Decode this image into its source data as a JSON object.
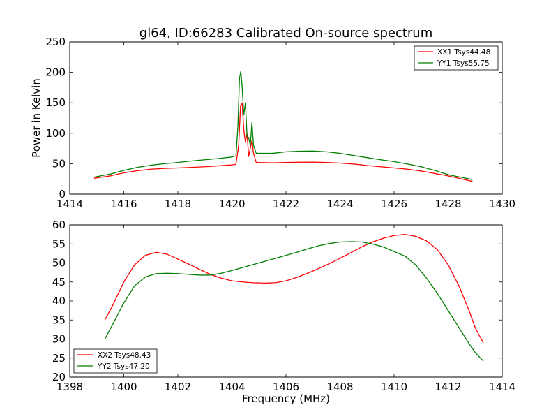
{
  "chart_data": [
    {
      "type": "line",
      "title": "gl64, ID:66283 Calibrated On-source spectrum",
      "xlabel": "",
      "ylabel": "Power in Kelvin",
      "xlim": [
        1414,
        1430
      ],
      "ylim": [
        0,
        250
      ],
      "xticks": [
        "1414",
        "1416",
        "1418",
        "1420",
        "1422",
        "1424",
        "1426",
        "1428",
        "1430"
      ],
      "yticks": [
        "0",
        "50",
        "100",
        "150",
        "200",
        "250"
      ],
      "grid": false,
      "legend_position": "top-right",
      "series": [
        {
          "name": "XX1 Tsys44.48",
          "color": "#ff0000",
          "points": [
            [
              1414.9,
              26
            ],
            [
              1415.5,
              30
            ],
            [
              1416,
              35
            ],
            [
              1416.5,
              38.5
            ],
            [
              1417,
              41
            ],
            [
              1417.5,
              42.3
            ],
            [
              1418,
              43
            ],
            [
              1418.5,
              44
            ],
            [
              1419,
              45
            ],
            [
              1419.5,
              46.5
            ],
            [
              1420.0,
              48
            ],
            [
              1420.15,
              49
            ],
            [
              1420.25,
              80
            ],
            [
              1420.32,
              145
            ],
            [
              1420.38,
              149
            ],
            [
              1420.44,
              105
            ],
            [
              1420.5,
              85
            ],
            [
              1420.56,
              100
            ],
            [
              1420.62,
              62
            ],
            [
              1420.68,
              75
            ],
            [
              1420.74,
              88
            ],
            [
              1420.8,
              67
            ],
            [
              1420.9,
              52
            ],
            [
              1421.5,
              51.5
            ],
            [
              1422,
              52
            ],
            [
              1422.5,
              52.5
            ],
            [
              1423,
              52.6
            ],
            [
              1423.5,
              52
            ],
            [
              1424,
              51
            ],
            [
              1424.5,
              49.5
            ],
            [
              1425,
              47
            ],
            [
              1425.5,
              45
            ],
            [
              1426,
              43
            ],
            [
              1426.5,
              41
            ],
            [
              1427,
              38
            ],
            [
              1427.5,
              34
            ],
            [
              1428,
              30
            ],
            [
              1428.5,
              25
            ],
            [
              1428.9,
              21
            ]
          ]
        },
        {
          "name": "YY1 Tsys55.75",
          "color": "#007f00",
          "points": [
            [
              1414.9,
              28
            ],
            [
              1415.5,
              33
            ],
            [
              1416,
              39
            ],
            [
              1416.5,
              44
            ],
            [
              1417,
              47.5
            ],
            [
              1417.5,
              50
            ],
            [
              1418,
              52
            ],
            [
              1418.5,
              54.5
            ],
            [
              1419,
              56.5
            ],
            [
              1419.5,
              58.5
            ],
            [
              1420.0,
              61
            ],
            [
              1420.15,
              63
            ],
            [
              1420.22,
              110
            ],
            [
              1420.28,
              190
            ],
            [
              1420.33,
              202
            ],
            [
              1420.38,
              175
            ],
            [
              1420.44,
              130
            ],
            [
              1420.5,
              150
            ],
            [
              1420.56,
              95
            ],
            [
              1420.62,
              93
            ],
            [
              1420.68,
              80
            ],
            [
              1420.74,
              118
            ],
            [
              1420.8,
              80
            ],
            [
              1420.9,
              67
            ],
            [
              1421.5,
              67
            ],
            [
              1422,
              69.5
            ],
            [
              1422.5,
              70.5
            ],
            [
              1423,
              70.8
            ],
            [
              1423.5,
              69.5
            ],
            [
              1424,
              67
            ],
            [
              1424.5,
              63.5
            ],
            [
              1425,
              60
            ],
            [
              1425.5,
              56.5
            ],
            [
              1426,
              53.5
            ],
            [
              1426.5,
              49.5
            ],
            [
              1427,
              45
            ],
            [
              1427.5,
              39
            ],
            [
              1428,
              32
            ],
            [
              1428.5,
              27.5
            ],
            [
              1428.9,
              24
            ]
          ]
        }
      ]
    },
    {
      "type": "line",
      "title": "",
      "xlabel": "Frequency (MHz)",
      "ylabel": "",
      "xlim": [
        1398,
        1414
      ],
      "ylim": [
        20,
        60
      ],
      "xticks": [
        "1398",
        "1400",
        "1402",
        "1404",
        "1406",
        "1408",
        "1410",
        "1412",
        "1414"
      ],
      "yticks": [
        "20",
        "25",
        "30",
        "35",
        "40",
        "45",
        "50",
        "55",
        "60"
      ],
      "grid": false,
      "legend_position": "bottom-left",
      "series": [
        {
          "name": "XX2 Tsys48.43",
          "color": "#ff0000",
          "points": [
            [
              1399.3,
              35
            ],
            [
              1399.6,
              39
            ],
            [
              1400,
              45
            ],
            [
              1400.4,
              49.5
            ],
            [
              1400.8,
              52
            ],
            [
              1401.2,
              52.8
            ],
            [
              1401.6,
              52.3
            ],
            [
              1402,
              51
            ],
            [
              1402.4,
              49.7
            ],
            [
              1402.8,
              48.3
            ],
            [
              1403.2,
              47
            ],
            [
              1403.6,
              46
            ],
            [
              1404,
              45.3
            ],
            [
              1404.4,
              45
            ],
            [
              1404.8,
              44.8
            ],
            [
              1405.2,
              44.7
            ],
            [
              1405.6,
              44.8
            ],
            [
              1406,
              45.3
            ],
            [
              1406.4,
              46.2
            ],
            [
              1406.8,
              47.3
            ],
            [
              1407.2,
              48.5
            ],
            [
              1407.6,
              49.8
            ],
            [
              1408,
              51.2
            ],
            [
              1408.4,
              52.7
            ],
            [
              1408.8,
              54.2
            ],
            [
              1409.2,
              55.5
            ],
            [
              1409.6,
              56.5
            ],
            [
              1410,
              57.2
            ],
            [
              1410.4,
              57.5
            ],
            [
              1410.8,
              57
            ],
            [
              1411.2,
              55.8
            ],
            [
              1411.6,
              53.5
            ],
            [
              1412,
              49.5
            ],
            [
              1412.4,
              44
            ],
            [
              1412.8,
              37
            ],
            [
              1413.0,
              33
            ],
            [
              1413.3,
              29
            ]
          ]
        },
        {
          "name": "YY2 Tsys47.20",
          "color": "#007f00",
          "points": [
            [
              1399.3,
              30
            ],
            [
              1399.6,
              34
            ],
            [
              1400,
              39.5
            ],
            [
              1400.4,
              44
            ],
            [
              1400.8,
              46.3
            ],
            [
              1401.2,
              47.2
            ],
            [
              1401.6,
              47.3
            ],
            [
              1402,
              47.2
            ],
            [
              1402.4,
              47
            ],
            [
              1402.8,
              46.8
            ],
            [
              1403.2,
              46.8
            ],
            [
              1403.6,
              47.3
            ],
            [
              1404,
              48
            ],
            [
              1404.4,
              48.8
            ],
            [
              1404.8,
              49.6
            ],
            [
              1405.2,
              50.4
            ],
            [
              1405.6,
              51.2
            ],
            [
              1406,
              52
            ],
            [
              1406.4,
              52.8
            ],
            [
              1406.8,
              53.7
            ],
            [
              1407.2,
              54.5
            ],
            [
              1407.6,
              55.1
            ],
            [
              1408,
              55.5
            ],
            [
              1408.4,
              55.6
            ],
            [
              1408.8,
              55.5
            ],
            [
              1409.2,
              55
            ],
            [
              1409.6,
              54.2
            ],
            [
              1410,
              53
            ],
            [
              1410.4,
              51.8
            ],
            [
              1410.8,
              49.5
            ],
            [
              1411.2,
              46
            ],
            [
              1411.6,
              42
            ],
            [
              1412,
              37.5
            ],
            [
              1412.4,
              33
            ],
            [
              1412.8,
              28.5
            ],
            [
              1413.0,
              26.5
            ],
            [
              1413.3,
              24.2
            ]
          ]
        }
      ]
    }
  ]
}
